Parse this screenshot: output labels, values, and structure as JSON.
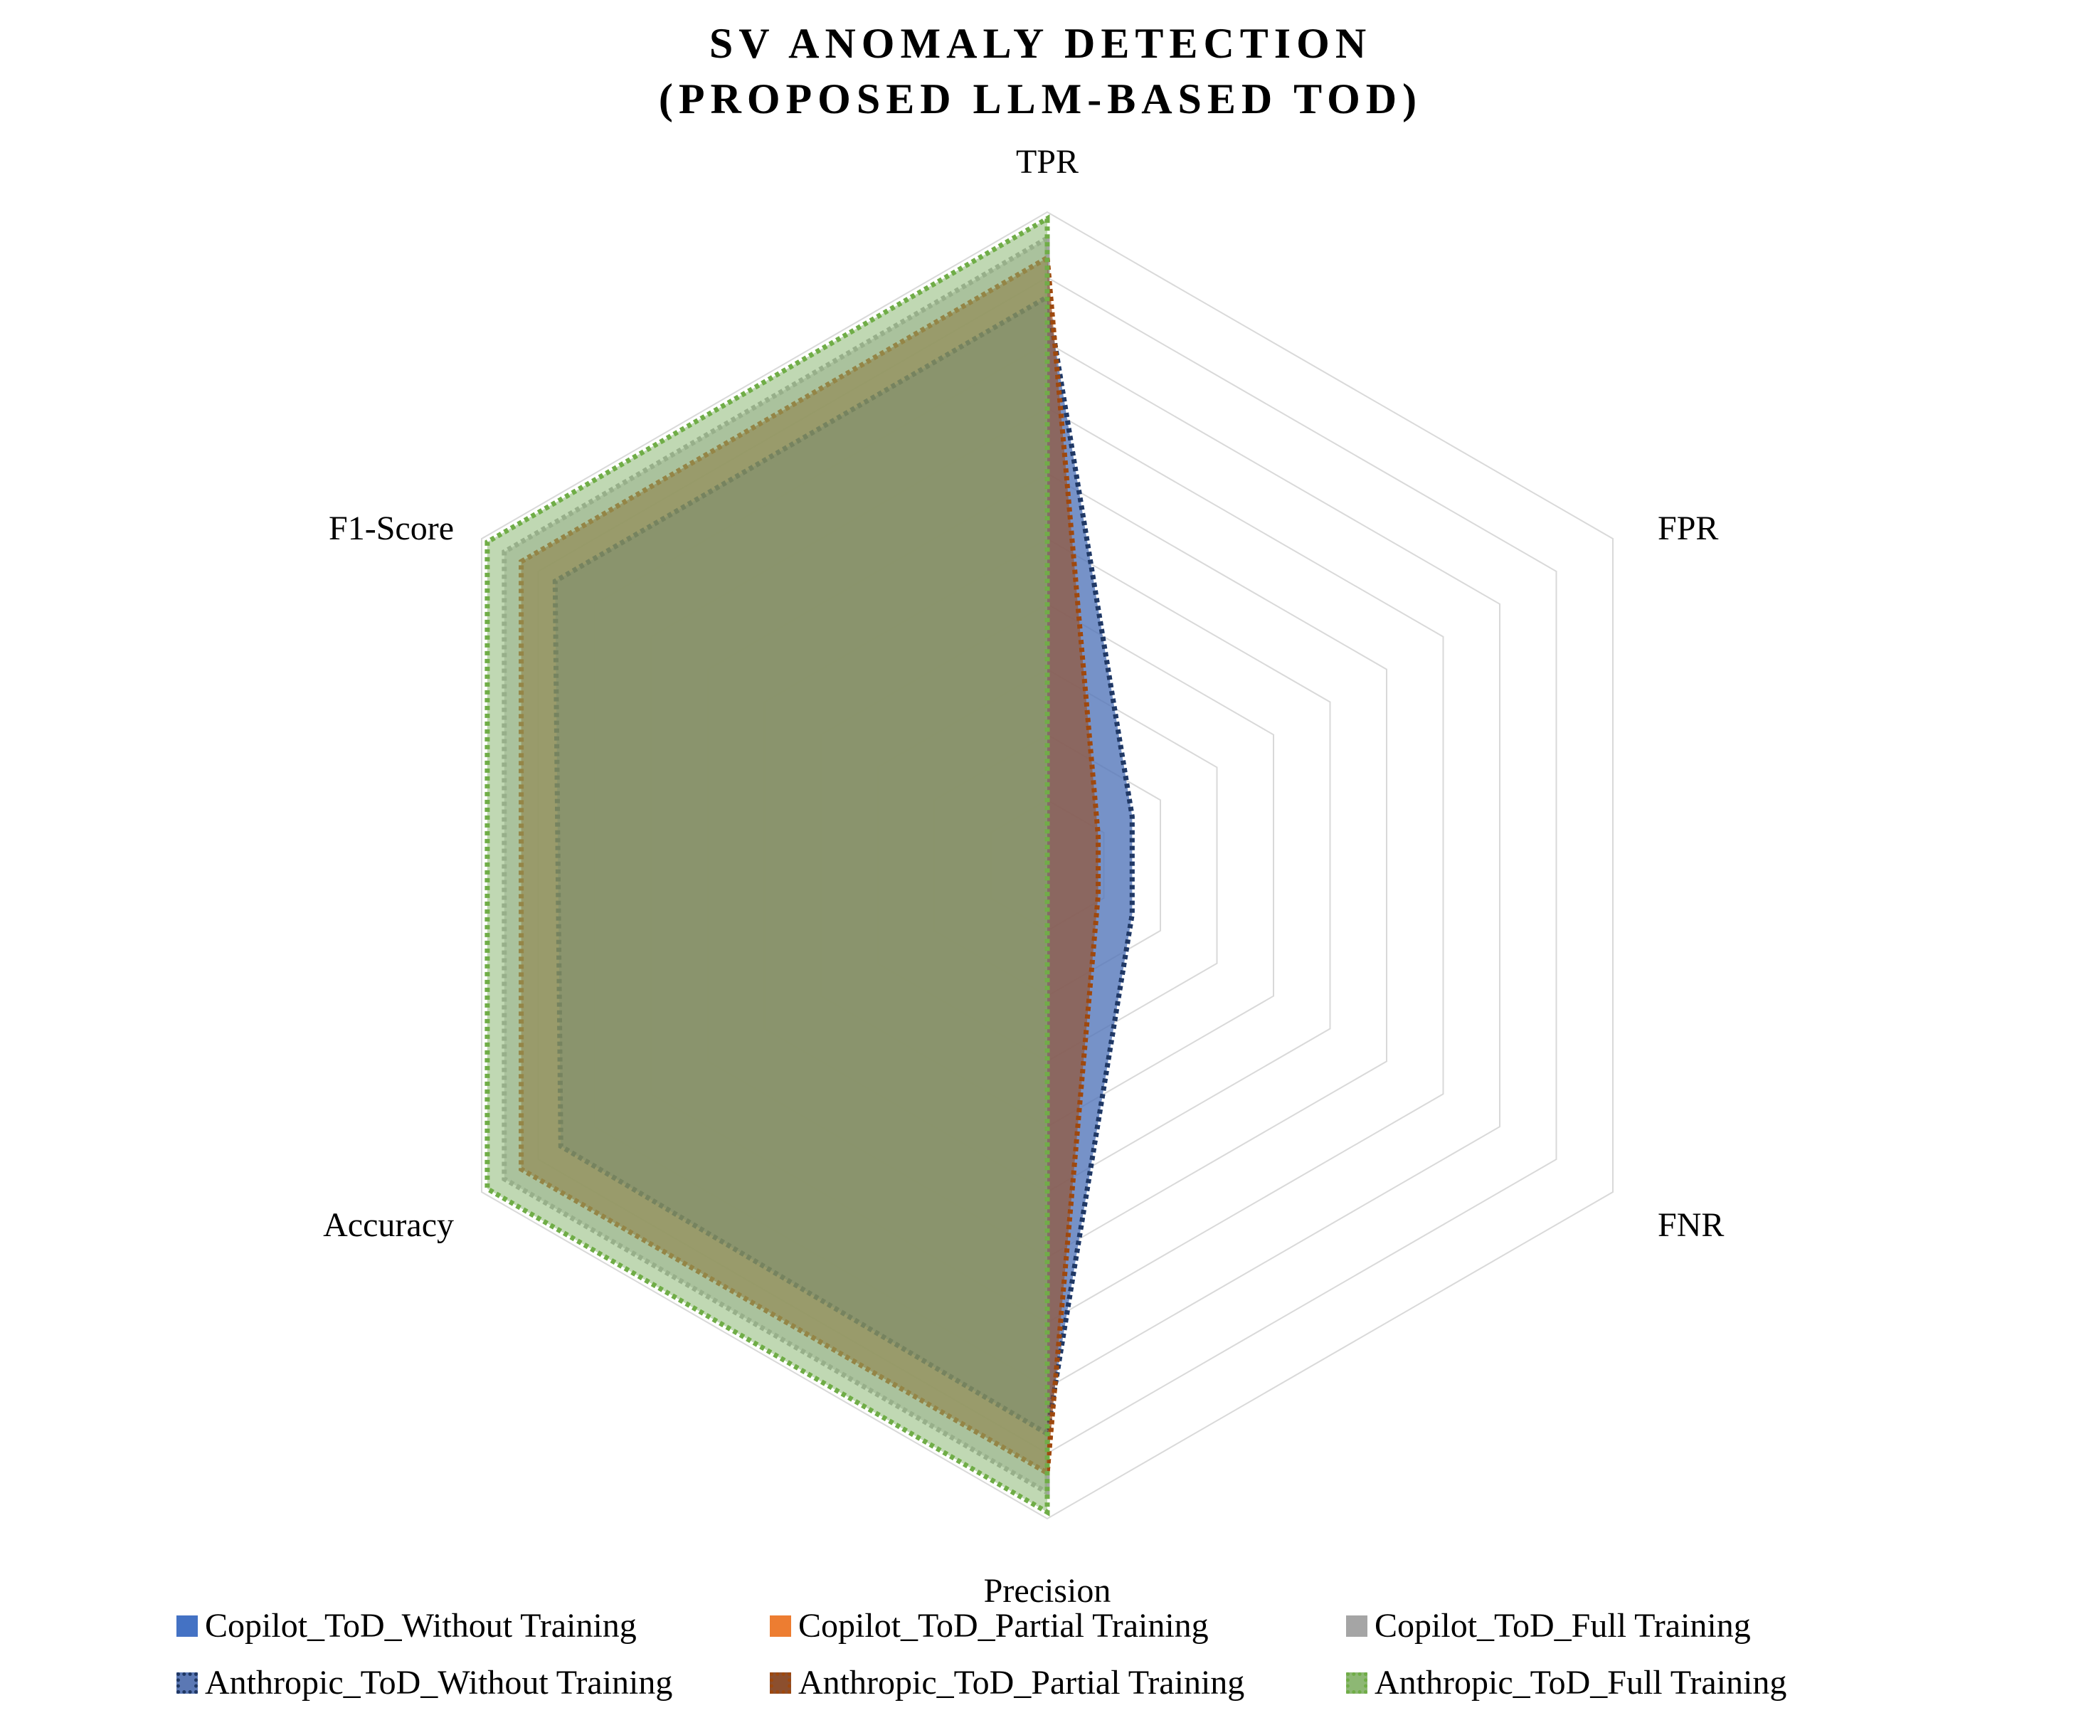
{
  "chart_data": {
    "type": "radar",
    "title_lines": [
      "SV ANOMALY DETECTION",
      "(PROPOSED LLM-BASED TOD)"
    ],
    "axes": [
      "TPR",
      "FPR",
      "FNR",
      "Precision",
      "Accuracy",
      "F1-Score"
    ],
    "rmax": 1.0,
    "grid_rings": 10,
    "grid": true,
    "legend_position": "bottom",
    "series": [
      {
        "name": "Copilot_ToD_Without Training",
        "values": [
          0.87,
          0.15,
          0.15,
          0.87,
          0.86,
          0.87
        ],
        "fill": "#4472C4",
        "stroke": "#4472C4"
      },
      {
        "name": "Copilot_ToD_Partial Training",
        "values": [
          0.93,
          0.09,
          0.09,
          0.93,
          0.93,
          0.93
        ],
        "fill": "#ED7D31",
        "stroke": "#ED7D31"
      },
      {
        "name": "Copilot_ToD_Full Training",
        "values": [
          0.96,
          0.0,
          0.0,
          0.96,
          0.96,
          0.96
        ],
        "fill": "#A5A5A5",
        "stroke": "#A5A5A5"
      },
      {
        "name": "Anthropic_ToD_Without Training",
        "values": [
          0.87,
          0.15,
          0.15,
          0.87,
          0.86,
          0.87
        ],
        "fill": "#5B78B4",
        "stroke": "#203864"
      },
      {
        "name": "Anthropic_ToD_Partial Training",
        "values": [
          0.93,
          0.09,
          0.09,
          0.93,
          0.93,
          0.93
        ],
        "fill": "#8C4F2E",
        "stroke": "#9E480E"
      },
      {
        "name": "Anthropic_ToD_Full Training",
        "values": [
          0.99,
          0.0,
          0.0,
          0.99,
          0.99,
          0.99
        ],
        "fill": "#8DB874",
        "stroke": "#70AD47"
      }
    ]
  }
}
